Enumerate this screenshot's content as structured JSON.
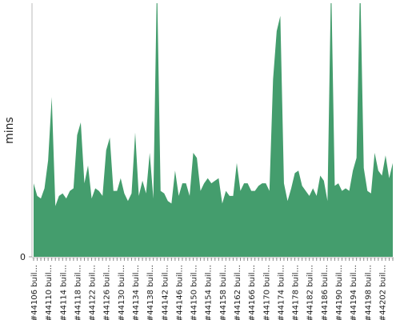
{
  "chart_data": {
    "type": "area",
    "y_label": "mins",
    "color": "#449d6d",
    "categories": [
      "#44106 buil...",
      null,
      null,
      null,
      "#44110 buil...",
      null,
      null,
      null,
      "#44114 buil...",
      null,
      null,
      null,
      "#44118 buil...",
      null,
      null,
      null,
      "#44122 buil...",
      null,
      null,
      null,
      "#44126 buil...",
      null,
      null,
      null,
      "#44130 buil...",
      null,
      null,
      null,
      "#44134 buil...",
      null,
      null,
      null,
      "#44138 buil...",
      null,
      null,
      null,
      "#44142 buil...",
      null,
      null,
      null,
      "#44146 buil...",
      null,
      null,
      null,
      "#44150 buil...",
      null,
      null,
      null,
      "#44154 buil...",
      null,
      null,
      null,
      "#44158 buil...",
      null,
      null,
      null,
      "#44162 buil...",
      null,
      null,
      null,
      "#44166 buil...",
      null,
      null,
      null,
      "#44170 buil...",
      null,
      null,
      null,
      "#44174 buil...",
      null,
      null,
      null,
      "#44178 buil...",
      null,
      null,
      null,
      "#44182 buil...",
      null,
      null,
      null,
      "#44186 buil...",
      null,
      null,
      null,
      "#44190 buil...",
      null,
      null,
      null,
      "#44194 buil...",
      null,
      null,
      null,
      "#44198 buil...",
      null,
      null,
      null,
      "#44202 buil...",
      null,
      null,
      null
    ],
    "values": [
      29,
      24,
      23,
      27,
      38,
      63,
      20,
      24,
      25,
      23,
      26,
      27,
      48,
      53,
      29,
      36,
      23,
      27,
      26,
      24,
      42,
      47,
      26,
      26,
      31,
      25,
      22,
      25,
      49,
      24,
      30,
      25,
      41,
      23,
      110,
      26,
      25,
      22,
      21,
      34,
      24,
      29,
      29,
      24,
      41,
      39,
      26,
      29,
      31,
      29,
      30,
      31,
      21,
      26,
      24,
      24,
      37,
      26,
      29,
      29,
      26,
      26,
      28,
      29,
      29,
      26,
      70,
      89,
      95,
      29,
      22,
      27,
      33,
      34,
      28,
      26,
      24,
      27,
      24,
      32,
      30,
      22,
      110,
      28,
      29,
      26,
      27,
      26,
      34,
      39,
      110,
      35,
      26,
      25,
      41,
      34,
      32,
      40,
      31,
      37
    ],
    "ylim": [
      0,
      100
    ],
    "yticks": [
      0
    ]
  }
}
